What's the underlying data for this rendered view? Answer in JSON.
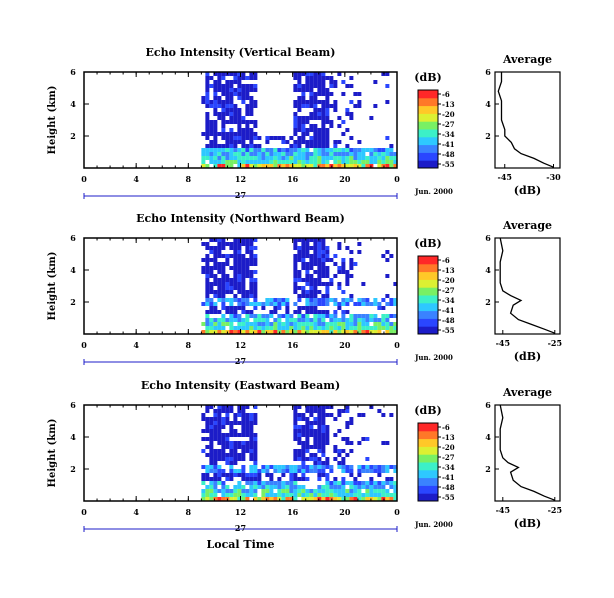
{
  "common": {
    "ylabel": "Height (km)",
    "y_ticks": [
      "6",
      "4",
      "2"
    ],
    "x_ticks": [
      "0",
      "4",
      "8",
      "12",
      "16",
      "20",
      "0"
    ],
    "date_day": "27",
    "date_label": "Jun. 2000",
    "xlabel": "Local Time",
    "colorbar_title": "(dB)",
    "colorbar_ticks": [
      "-6",
      "-13",
      "-20",
      "-27",
      "-34",
      "-41",
      "-48",
      "-55"
    ],
    "avg_title": "Average",
    "avg_xlabel": "(dB)",
    "avg_y_ticks": [
      "6",
      "4",
      "2"
    ],
    "colors": {
      "colormap": [
        "#1c1cc8",
        "#2a46ff",
        "#3a82ff",
        "#2ec8ff",
        "#3cf0c8",
        "#78f064",
        "#dcf032",
        "#ffc828",
        "#ff7828",
        "#ff2828"
      ]
    }
  },
  "chart_data": [
    {
      "type": "heatmap",
      "title": "Echo Intensity (Vertical Beam)",
      "xlabel": "Local Time",
      "ylabel": "Height (km)",
      "x_range_hours": [
        0,
        24
      ],
      "ylim_km": [
        0,
        6
      ],
      "data_hours": [
        9,
        24
      ],
      "colorbar_range_db": [
        -55,
        -6
      ],
      "average_profile": {
        "title": "Average",
        "xlabel": "(dB)",
        "x_ticks": [
          "-45",
          "-30"
        ],
        "xlim_db": [
          -48,
          -28
        ],
        "ylim_km": [
          0,
          6
        ],
        "points": [
          [
            0.05,
            -30
          ],
          [
            0.3,
            -33
          ],
          [
            0.6,
            -36
          ],
          [
            0.9,
            -40
          ],
          [
            1.2,
            -42
          ],
          [
            1.6,
            -43
          ],
          [
            2.0,
            -45
          ],
          [
            2.4,
            -45
          ],
          [
            3.0,
            -46
          ],
          [
            3.6,
            -46
          ],
          [
            4.2,
            -46
          ],
          [
            4.8,
            -47
          ],
          [
            5.4,
            -46
          ],
          [
            6.0,
            -46
          ]
        ]
      }
    },
    {
      "type": "heatmap",
      "title": "Echo Intensity (Northward Beam)",
      "xlabel": "Local Time",
      "ylabel": "Height (km)",
      "x_range_hours": [
        0,
        24
      ],
      "ylim_km": [
        0,
        6
      ],
      "data_hours": [
        9,
        24
      ],
      "colorbar_range_db": [
        -55,
        -6
      ],
      "average_profile": {
        "title": "Average",
        "xlabel": "(dB)",
        "x_ticks": [
          "-45",
          "-25"
        ],
        "xlim_db": [
          -48,
          -23
        ],
        "ylim_km": [
          0,
          6
        ],
        "points": [
          [
            0.05,
            -25
          ],
          [
            0.3,
            -29
          ],
          [
            0.6,
            -34
          ],
          [
            0.9,
            -39
          ],
          [
            1.3,
            -42
          ],
          [
            1.8,
            -41
          ],
          [
            2.1,
            -38
          ],
          [
            2.4,
            -42
          ],
          [
            2.7,
            -45
          ],
          [
            3.2,
            -46
          ],
          [
            3.8,
            -46
          ],
          [
            4.5,
            -46
          ],
          [
            5.2,
            -45
          ],
          [
            6.0,
            -46
          ]
        ]
      }
    },
    {
      "type": "heatmap",
      "title": "Echo Intensity (Eastward Beam)",
      "xlabel": "Local Time",
      "ylabel": "Height (km)",
      "x_range_hours": [
        0,
        24
      ],
      "ylim_km": [
        0,
        6
      ],
      "data_hours": [
        9,
        24
      ],
      "colorbar_range_db": [
        -55,
        -6
      ],
      "average_profile": {
        "title": "Average",
        "xlabel": "(dB)",
        "x_ticks": [
          "-45",
          "-25"
        ],
        "xlim_db": [
          -48,
          -23
        ],
        "ylim_km": [
          0,
          6
        ],
        "points": [
          [
            0.05,
            -25
          ],
          [
            0.3,
            -29
          ],
          [
            0.6,
            -33
          ],
          [
            0.9,
            -38
          ],
          [
            1.3,
            -41
          ],
          [
            1.8,
            -42
          ],
          [
            2.1,
            -39
          ],
          [
            2.4,
            -43
          ],
          [
            2.7,
            -45
          ],
          [
            3.2,
            -46
          ],
          [
            3.8,
            -46
          ],
          [
            4.5,
            -46
          ],
          [
            5.2,
            -45
          ],
          [
            6.0,
            -46
          ]
        ]
      }
    }
  ]
}
